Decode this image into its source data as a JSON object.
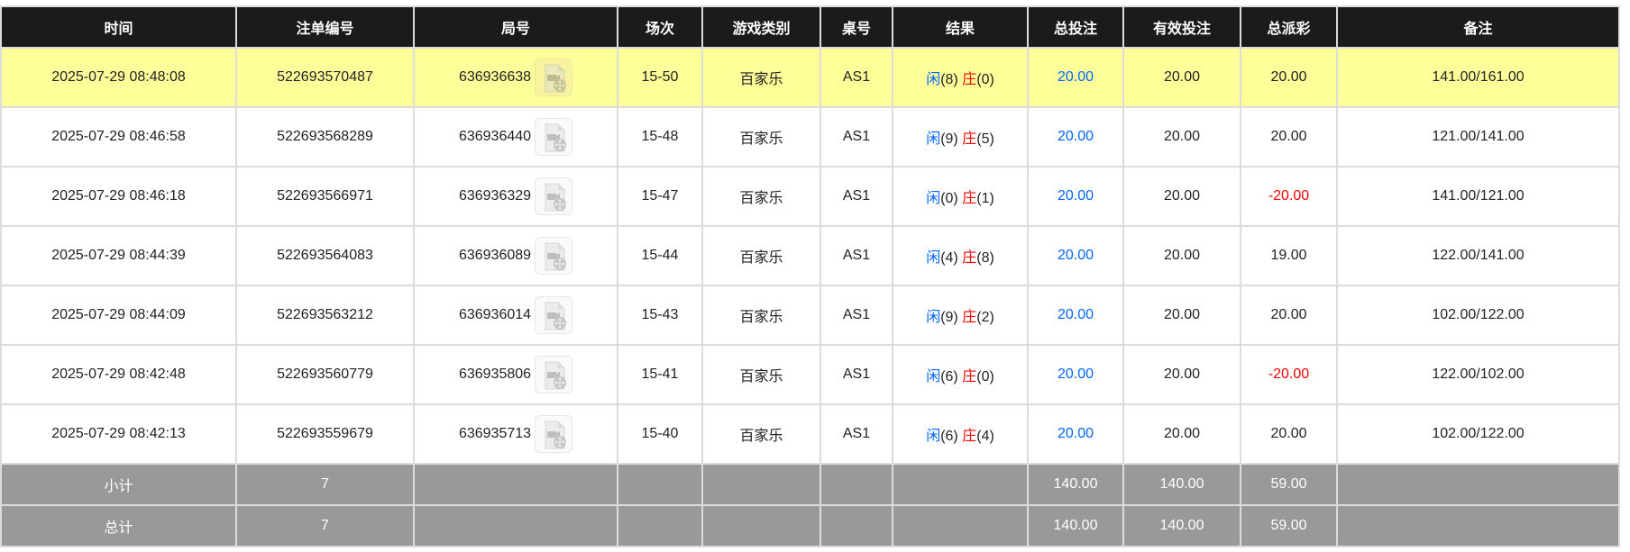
{
  "headers": [
    "时间",
    "注单编号",
    "局号",
    "场次",
    "游戏类别",
    "桌号",
    "结果",
    "总投注",
    "有效投注",
    "总派彩",
    "备注"
  ],
  "colors": {
    "header_bg": "#1b1b1b",
    "highlight_row": "#ffff99",
    "footer_bg": "#999999",
    "player": "#0066ff",
    "banker": "#ff0000",
    "negative": "#ff0000"
  },
  "player_label": "闲",
  "banker_label": "庄",
  "rows": [
    {
      "time": "2025-07-29 08:48:08",
      "bet_id": "522693570487",
      "round": "636936638",
      "shoe": "15-50",
      "game": "百家乐",
      "table": "AS1",
      "player": "(8)",
      "banker": "(0)",
      "total": "20.00",
      "valid": "20.00",
      "payout": "20.00",
      "note": "141.00/161.00",
      "highlighted": true
    },
    {
      "time": "2025-07-29 08:46:58",
      "bet_id": "522693568289",
      "round": "636936440",
      "shoe": "15-48",
      "game": "百家乐",
      "table": "AS1",
      "player": "(9)",
      "banker": "(5)",
      "total": "20.00",
      "valid": "20.00",
      "payout": "20.00",
      "note": "121.00/141.00"
    },
    {
      "time": "2025-07-29 08:46:18",
      "bet_id": "522693566971",
      "round": "636936329",
      "shoe": "15-47",
      "game": "百家乐",
      "table": "AS1",
      "player": "(0)",
      "banker": "(1)",
      "total": "20.00",
      "valid": "20.00",
      "payout": "-20.00",
      "note": "141.00/121.00"
    },
    {
      "time": "2025-07-29 08:44:39",
      "bet_id": "522693564083",
      "round": "636936089",
      "shoe": "15-44",
      "game": "百家乐",
      "table": "AS1",
      "player": "(4)",
      "banker": "(8)",
      "total": "20.00",
      "valid": "20.00",
      "payout": "19.00",
      "note": "122.00/141.00"
    },
    {
      "time": "2025-07-29 08:44:09",
      "bet_id": "522693563212",
      "round": "636936014",
      "shoe": "15-43",
      "game": "百家乐",
      "table": "AS1",
      "player": "(9)",
      "banker": "(2)",
      "total": "20.00",
      "valid": "20.00",
      "payout": "20.00",
      "note": "102.00/122.00"
    },
    {
      "time": "2025-07-29 08:42:48",
      "bet_id": "522693560779",
      "round": "636935806",
      "shoe": "15-41",
      "game": "百家乐",
      "table": "AS1",
      "player": "(6)",
      "banker": "(0)",
      "total": "20.00",
      "valid": "20.00",
      "payout": "-20.00",
      "note": "122.00/102.00"
    },
    {
      "time": "2025-07-29 08:42:13",
      "bet_id": "522693559679",
      "round": "636935713",
      "shoe": "15-40",
      "game": "百家乐",
      "table": "AS1",
      "player": "(6)",
      "banker": "(4)",
      "total": "20.00",
      "valid": "20.00",
      "payout": "20.00",
      "note": "102.00/122.00"
    }
  ],
  "subtotal": {
    "label": "小计",
    "count": "7",
    "total": "140.00",
    "valid": "140.00",
    "payout": "59.00"
  },
  "grand_total": {
    "label": "总计",
    "count": "7",
    "total": "140.00",
    "valid": "140.00",
    "payout": "59.00"
  }
}
